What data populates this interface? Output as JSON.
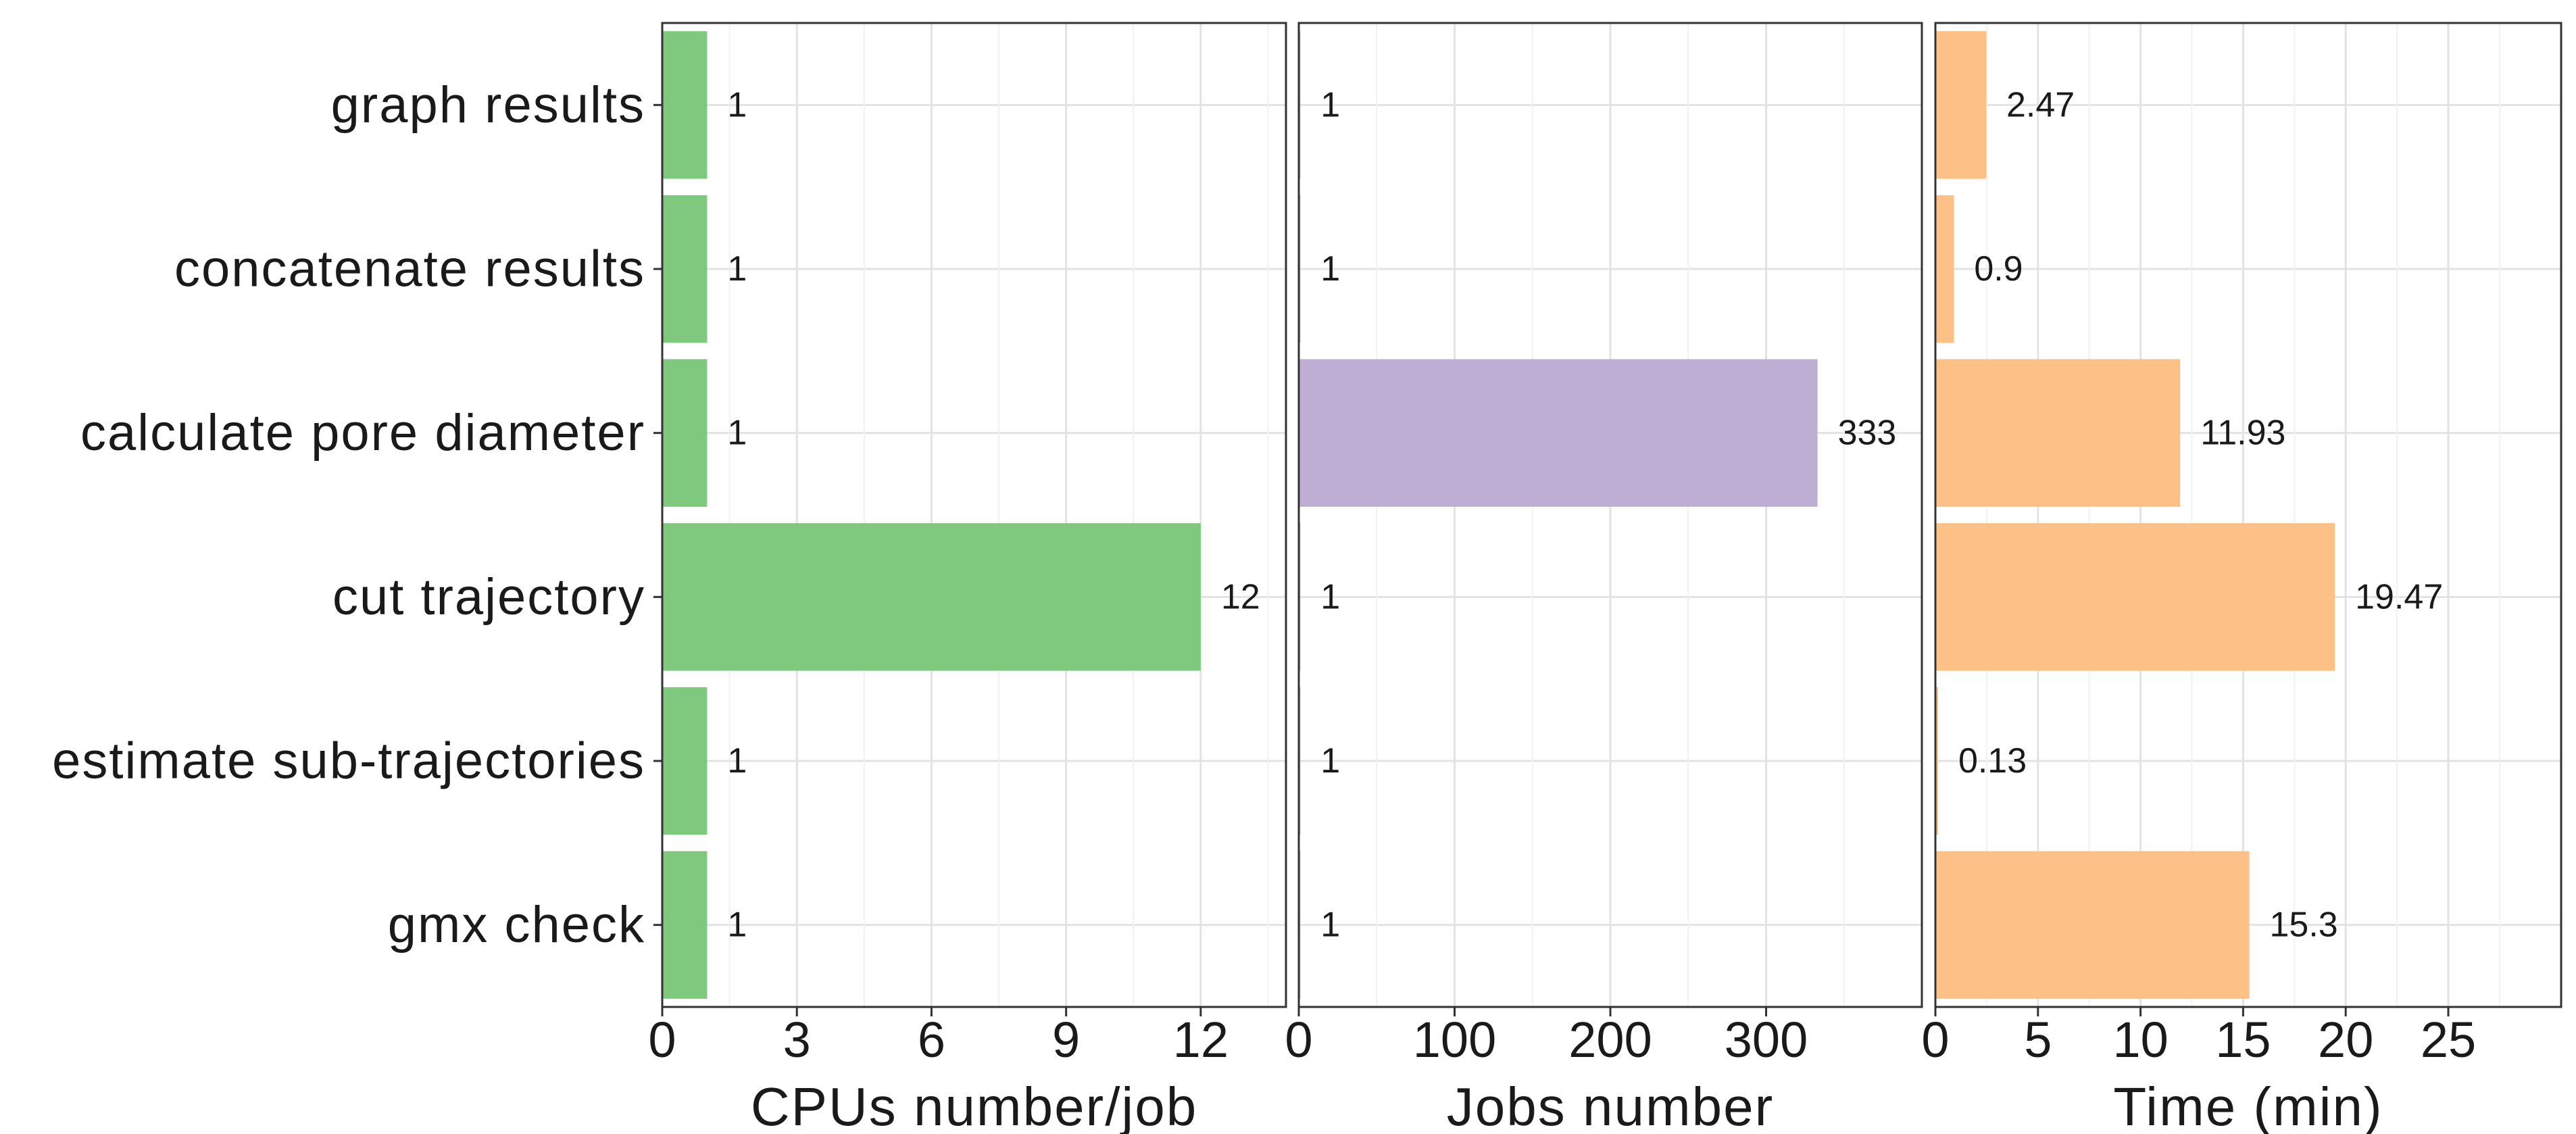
{
  "chart_data": {
    "type": "bar",
    "orientation": "horizontal",
    "categories": [
      "graph results",
      "concatenate results",
      "calculate pore diameter",
      "cut trajectory",
      "estimate sub-trajectories",
      "gmx check"
    ],
    "grid": true,
    "panels": [
      {
        "id": "cpus",
        "xlabel": "CPUs number/job",
        "color": "#7fc97f",
        "xlim": [
          0,
          13.9
        ],
        "ticks": [
          0,
          3,
          6,
          9,
          12
        ],
        "tick_labels": [
          "0",
          "3",
          "6",
          "9",
          "12"
        ],
        "values": [
          1,
          1,
          1,
          12,
          1,
          1
        ],
        "value_labels": [
          "1",
          "1",
          "1",
          "12",
          "1",
          "1"
        ]
      },
      {
        "id": "jobs",
        "xlabel": "Jobs number",
        "color": "#beaed4",
        "xlim": [
          0,
          400
        ],
        "ticks": [
          0,
          100,
          200,
          300
        ],
        "tick_labels": [
          "0",
          "100",
          "200",
          "300"
        ],
        "values": [
          1,
          1,
          333,
          1,
          1,
          1
        ],
        "value_labels": [
          "1",
          "1",
          "333",
          "1",
          "1",
          "1"
        ]
      },
      {
        "id": "time",
        "xlabel": "Time (min)",
        "color": "#fdc086",
        "xlim": [
          0,
          30.5
        ],
        "ticks": [
          0,
          5,
          10,
          15,
          20,
          25
        ],
        "tick_labels": [
          "0",
          "5",
          "10",
          "15",
          "20",
          "25"
        ],
        "values": [
          2.47,
          0.9,
          11.93,
          19.47,
          0.13,
          15.3
        ],
        "value_labels": [
          "2.47",
          "0.9",
          "11.93",
          "19.47",
          "0.13",
          "15.3"
        ]
      }
    ]
  }
}
